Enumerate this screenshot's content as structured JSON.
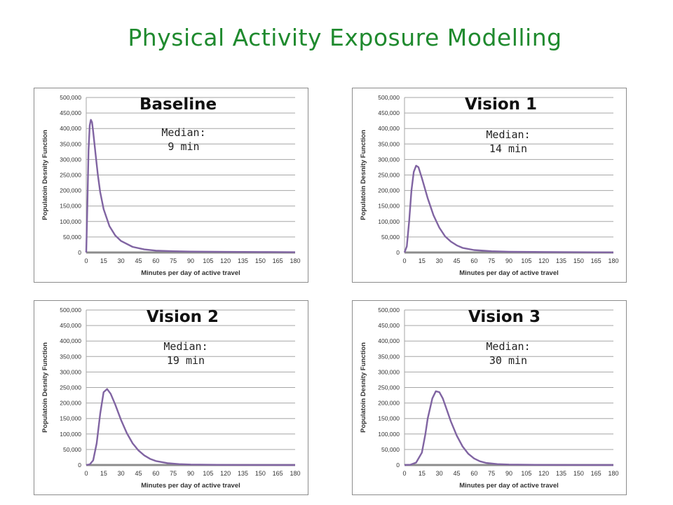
{
  "page_title": "Physical Activity Exposure Modelling",
  "colors": {
    "title": "#1f8a2e",
    "curve": "#8064a2",
    "baseline": "#8c8c8c",
    "grid": "#a6a6a6"
  },
  "chart_data": [
    {
      "type": "line",
      "title": "Baseline",
      "median_label": "Median:",
      "median_value": "9 min",
      "xlabel": "Minutes per day of active travel",
      "ylabel": "Populatoin Desnity Function",
      "xlim": [
        0,
        180
      ],
      "ylim": [
        0,
        500000
      ],
      "x_ticks": [
        "0",
        "15",
        "30",
        "45",
        "60",
        "75",
        "90",
        "105",
        "120",
        "135",
        "150",
        "165",
        "180"
      ],
      "y_ticks": [
        "0",
        "50,000",
        "100,000",
        "150,000",
        "200,000",
        "250,000",
        "300,000",
        "350,000",
        "400,000",
        "450,000",
        "500,000"
      ],
      "grid": true,
      "series": [
        {
          "x": [
            0,
            1,
            2,
            3,
            4,
            5,
            6,
            8,
            10,
            12,
            15,
            20,
            25,
            30,
            40,
            50,
            60,
            75,
            90,
            120,
            150,
            180
          ],
          "y": [
            0,
            160000,
            330000,
            410000,
            428000,
            420000,
            390000,
            320000,
            250000,
            195000,
            140000,
            85000,
            55000,
            37000,
            18000,
            10000,
            6000,
            4000,
            3000,
            2000,
            1500,
            1000
          ]
        }
      ]
    },
    {
      "type": "line",
      "title": "Vision 1",
      "median_label": "Median:",
      "median_value": "14 min",
      "xlabel": "Minutes per day of active travel",
      "ylabel": "Populatoin Desnity Function",
      "xlim": [
        0,
        180
      ],
      "ylim": [
        0,
        500000
      ],
      "x_ticks": [
        "0",
        "15",
        "30",
        "45",
        "60",
        "75",
        "90",
        "105",
        "120",
        "135",
        "150",
        "165",
        "180"
      ],
      "y_ticks": [
        "0",
        "50,000",
        "100,000",
        "150,000",
        "200,000",
        "250,000",
        "300,000",
        "350,000",
        "400,000",
        "450,000",
        "500,000"
      ],
      "grid": true,
      "series": [
        {
          "x": [
            0,
            2,
            4,
            6,
            8,
            10,
            12,
            15,
            20,
            25,
            30,
            35,
            40,
            45,
            50,
            60,
            75,
            90,
            120,
            150,
            180
          ],
          "y": [
            0,
            20000,
            100000,
            200000,
            260000,
            280000,
            275000,
            240000,
            175000,
            120000,
            80000,
            52000,
            35000,
            23000,
            15000,
            8000,
            4000,
            2500,
            1500,
            1000,
            500
          ]
        }
      ]
    },
    {
      "type": "line",
      "title": "Vision 2",
      "median_label": "Median:",
      "median_value": "19 min",
      "xlabel": "Minutes per day of active travel",
      "ylabel": "Populatoin Desnity Function",
      "xlim": [
        0,
        180
      ],
      "ylim": [
        0,
        500000
      ],
      "x_ticks": [
        "0",
        "15",
        "30",
        "45",
        "60",
        "75",
        "90",
        "105",
        "120",
        "135",
        "150",
        "165",
        "180"
      ],
      "y_ticks": [
        "0",
        "50,000",
        "100,000",
        "150,000",
        "200,000",
        "250,000",
        "300,000",
        "350,000",
        "400,000",
        "450,000",
        "500,000"
      ],
      "grid": true,
      "series": [
        {
          "x": [
            0,
            3,
            6,
            9,
            12,
            15,
            18,
            21,
            25,
            30,
            35,
            40,
            45,
            50,
            55,
            60,
            70,
            80,
            90,
            105,
            120,
            150,
            180
          ],
          "y": [
            0,
            2000,
            15000,
            70000,
            165000,
            235000,
            245000,
            230000,
            195000,
            145000,
            103000,
            70000,
            47000,
            31000,
            20000,
            13000,
            6000,
            3000,
            1500,
            800,
            500,
            300,
            0
          ]
        }
      ]
    },
    {
      "type": "line",
      "title": "Vision 3",
      "median_label": "Median:",
      "median_value": "30 min",
      "xlabel": "Minutes per day of active travel",
      "ylabel": "Populatoin Desnity Function",
      "xlim": [
        0,
        180
      ],
      "ylim": [
        0,
        500000
      ],
      "x_ticks": [
        "0",
        "15",
        "30",
        "45",
        "60",
        "75",
        "90",
        "105",
        "120",
        "135",
        "150",
        "165",
        "180"
      ],
      "y_ticks": [
        "0",
        "50,000",
        "100,000",
        "150,000",
        "200,000",
        "250,000",
        "300,000",
        "350,000",
        "400,000",
        "450,000",
        "500,000"
      ],
      "grid": true,
      "series": [
        {
          "x": [
            0,
            5,
            10,
            15,
            18,
            20,
            24,
            27,
            30,
            33,
            36,
            40,
            45,
            50,
            55,
            60,
            65,
            70,
            80,
            90,
            105,
            120,
            150,
            180
          ],
          "y": [
            0,
            1000,
            8000,
            40000,
            100000,
            150000,
            215000,
            238000,
            235000,
            215000,
            183000,
            140000,
            95000,
            60000,
            36000,
            21000,
            12000,
            7000,
            3000,
            1500,
            800,
            400,
            200,
            0
          ]
        }
      ]
    }
  ]
}
